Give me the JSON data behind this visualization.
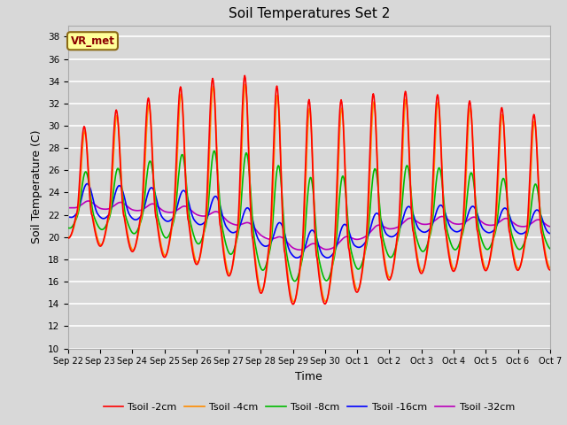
{
  "title": "Soil Temperatures Set 2",
  "xlabel": "Time",
  "ylabel": "Soil Temperature (C)",
  "ylim": [
    10,
    39
  ],
  "yticks": [
    10,
    12,
    14,
    16,
    18,
    20,
    22,
    24,
    26,
    28,
    30,
    32,
    34,
    36,
    38
  ],
  "annotation_text": "VR_met",
  "annotation_color": "#8B0000",
  "annotation_bg": "#FFFF99",
  "bg_color": "#D8D8D8",
  "grid_color": "#FFFFFF",
  "colors": {
    "2cm": "#FF0000",
    "4cm": "#FF8C00",
    "8cm": "#00BB00",
    "16cm": "#0000FF",
    "32cm": "#BB00BB"
  },
  "line_width": 1.2,
  "xtick_labels": [
    "Sep 22",
    "Sep 23",
    "Sep 24",
    "Sep 25",
    "Sep 26",
    "Sep 27",
    "Sep 28",
    "Sep 29",
    "Sep 30",
    "Oct 1",
    "Oct 2",
    "Oct 3",
    "Oct 4",
    "Oct 5",
    "Oct 6",
    "Oct 7"
  ],
  "legend_labels": [
    "Tsoil -2cm",
    "Tsoil -4cm",
    "Tsoil -8cm",
    "Tsoil -16cm",
    "Tsoil -32cm"
  ]
}
